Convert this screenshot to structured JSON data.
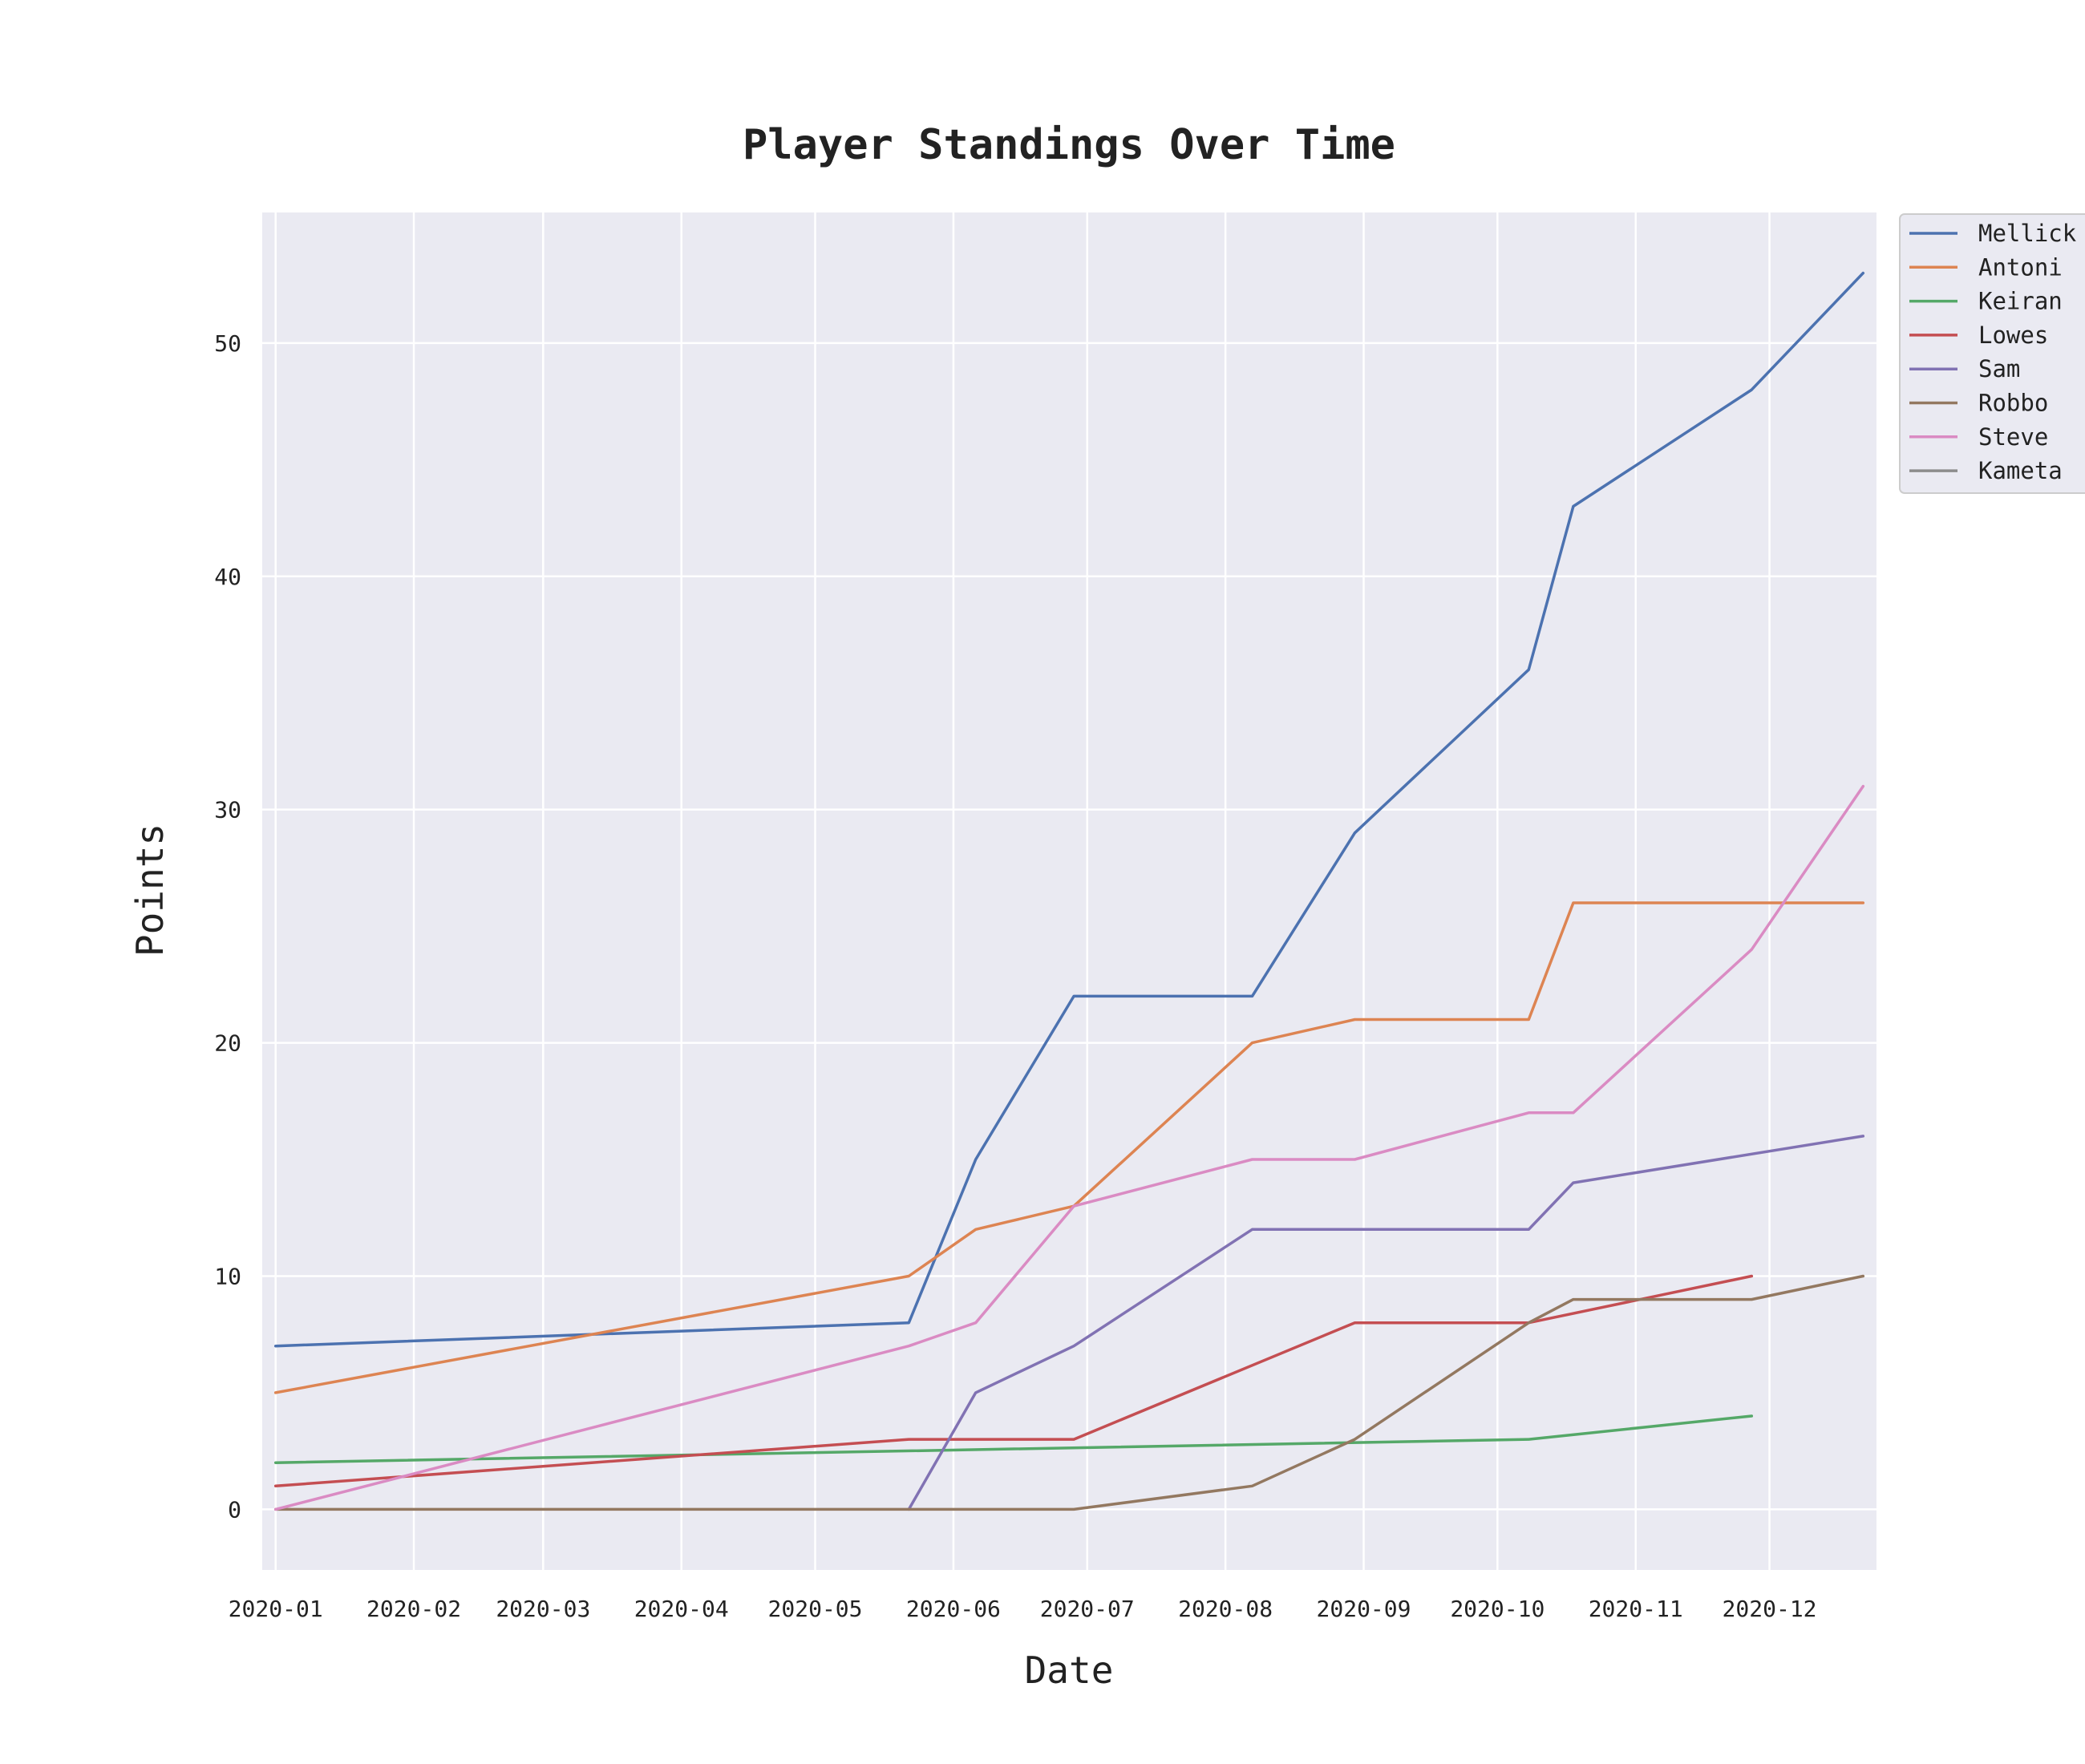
{
  "chart_data": {
    "type": "line",
    "title": "Player Standings Over Time",
    "xlabel": "Date",
    "ylabel": "Points",
    "x_axis_type": "date",
    "xlim": [
      "2019-12-29",
      "2020-12-25"
    ],
    "ylim": [
      -2.6,
      55.6
    ],
    "x_ticks": [
      "2020-01",
      "2020-02",
      "2020-03",
      "2020-04",
      "2020-05",
      "2020-06",
      "2020-07",
      "2020-08",
      "2020-09",
      "2020-10",
      "2020-11",
      "2020-12"
    ],
    "y_ticks": [
      0,
      10,
      20,
      30,
      40,
      50
    ],
    "grid": true,
    "legend_position": "outside-top-right",
    "series": [
      {
        "name": "Mellick",
        "color": "#4c72b0",
        "points": [
          [
            "2020-01-01",
            7
          ],
          [
            "2020-05-22",
            8
          ],
          [
            "2020-06-06",
            15
          ],
          [
            "2020-06-28",
            22
          ],
          [
            "2020-08-07",
            22
          ],
          [
            "2020-08-30",
            29
          ],
          [
            "2020-10-08",
            36
          ],
          [
            "2020-10-18",
            43
          ],
          [
            "2020-11-27",
            48
          ],
          [
            "2020-12-22",
            53
          ]
        ]
      },
      {
        "name": "Antoni",
        "color": "#dd8452",
        "points": [
          [
            "2020-01-01",
            5
          ],
          [
            "2020-05-22",
            10
          ],
          [
            "2020-06-06",
            12
          ],
          [
            "2020-06-28",
            13
          ],
          [
            "2020-08-07",
            20
          ],
          [
            "2020-08-30",
            21
          ],
          [
            "2020-10-08",
            21
          ],
          [
            "2020-10-18",
            26
          ],
          [
            "2020-11-27",
            26
          ],
          [
            "2020-12-22",
            26
          ]
        ]
      },
      {
        "name": "Keiran",
        "color": "#55a868",
        "points": [
          [
            "2020-01-01",
            2
          ],
          [
            "2020-10-08",
            3
          ],
          [
            "2020-11-27",
            4
          ]
        ]
      },
      {
        "name": "Lowes",
        "color": "#c44e52",
        "points": [
          [
            "2020-01-01",
            1
          ],
          [
            "2020-05-22",
            3
          ],
          [
            "2020-06-28",
            3
          ],
          [
            "2020-08-30",
            8
          ],
          [
            "2020-10-08",
            8
          ],
          [
            "2020-11-27",
            10
          ]
        ]
      },
      {
        "name": "Sam",
        "color": "#8172b3",
        "points": [
          [
            "2020-05-22",
            0
          ],
          [
            "2020-06-06",
            5
          ],
          [
            "2020-06-28",
            7
          ],
          [
            "2020-08-07",
            12
          ],
          [
            "2020-08-30",
            12
          ],
          [
            "2020-10-08",
            12
          ],
          [
            "2020-10-18",
            14
          ],
          [
            "2020-12-22",
            16
          ]
        ]
      },
      {
        "name": "Robbo",
        "color": "#937860",
        "points": [
          [
            "2020-01-01",
            0
          ],
          [
            "2020-06-28",
            0
          ],
          [
            "2020-08-07",
            1
          ],
          [
            "2020-08-30",
            3
          ],
          [
            "2020-10-08",
            8
          ],
          [
            "2020-10-18",
            9
          ],
          [
            "2020-11-27",
            9
          ],
          [
            "2020-12-22",
            10
          ]
        ]
      },
      {
        "name": "Steve",
        "color": "#da8bc3",
        "points": [
          [
            "2020-01-01",
            0
          ],
          [
            "2020-05-22",
            7
          ],
          [
            "2020-06-06",
            8
          ],
          [
            "2020-06-28",
            13
          ],
          [
            "2020-08-07",
            15
          ],
          [
            "2020-08-30",
            15
          ],
          [
            "2020-10-08",
            17
          ],
          [
            "2020-10-18",
            17
          ],
          [
            "2020-11-27",
            24
          ],
          [
            "2020-12-22",
            31
          ]
        ]
      },
      {
        "name": "Kameta",
        "color": "#8c8c8c",
        "points": []
      }
    ]
  }
}
